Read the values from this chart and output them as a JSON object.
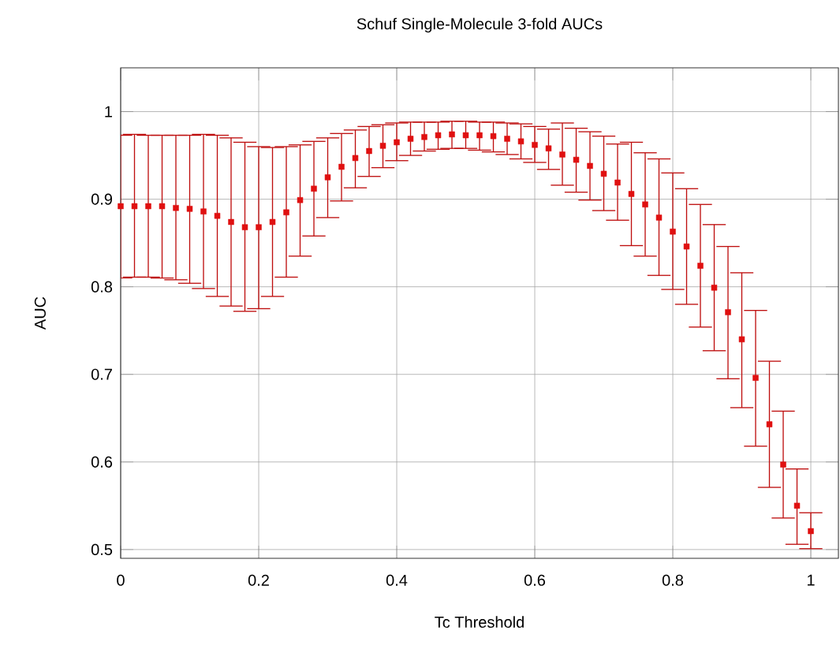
{
  "chart_data": {
    "type": "scatter",
    "title": "Schuf Single-Molecule 3-fold AUCs",
    "xlabel": "Tc Threshold",
    "ylabel": "AUC",
    "x": [
      0,
      0.02,
      0.04,
      0.06,
      0.08,
      0.1,
      0.12,
      0.14,
      0.16,
      0.18,
      0.2,
      0.22,
      0.24,
      0.26,
      0.28,
      0.3,
      0.32,
      0.34,
      0.36,
      0.38,
      0.4,
      0.42,
      0.44,
      0.46,
      0.48,
      0.5,
      0.52,
      0.54,
      0.56,
      0.58,
      0.6,
      0.62,
      0.64,
      0.66,
      0.68,
      0.7,
      0.72,
      0.74,
      0.76,
      0.78,
      0.8,
      0.82,
      0.84,
      0.86,
      0.88,
      0.9,
      0.92,
      0.94,
      0.96,
      0.98,
      1
    ],
    "values": [
      0.892,
      0.892,
      0.892,
      0.892,
      0.89,
      0.889,
      0.886,
      0.881,
      0.874,
      0.868,
      0.868,
      0.874,
      0.885,
      0.899,
      0.912,
      0.925,
      0.937,
      0.947,
      0.955,
      0.961,
      0.965,
      0.969,
      0.971,
      0.973,
      0.974,
      0.973,
      0.973,
      0.972,
      0.969,
      0.966,
      0.962,
      0.958,
      0.951,
      0.945,
      0.938,
      0.929,
      0.919,
      0.906,
      0.894,
      0.879,
      0.863,
      0.846,
      0.824,
      0.799,
      0.771,
      0.74,
      0.696,
      0.643,
      0.597,
      0.55,
      0.521
    ],
    "errors": [
      [
        0.81,
        0.973
      ],
      [
        0.811,
        0.974
      ],
      [
        0.811,
        0.973
      ],
      [
        0.81,
        0.973
      ],
      [
        0.808,
        0.973
      ],
      [
        0.804,
        0.973
      ],
      [
        0.798,
        0.974
      ],
      [
        0.789,
        0.973
      ],
      [
        0.778,
        0.97
      ],
      [
        0.772,
        0.965
      ],
      [
        0.775,
        0.96
      ],
      [
        0.789,
        0.959
      ],
      [
        0.811,
        0.96
      ],
      [
        0.835,
        0.962
      ],
      [
        0.858,
        0.966
      ],
      [
        0.879,
        0.97
      ],
      [
        0.898,
        0.975
      ],
      [
        0.913,
        0.979
      ],
      [
        0.926,
        0.983
      ],
      [
        0.936,
        0.985
      ],
      [
        0.944,
        0.987
      ],
      [
        0.95,
        0.988
      ],
      [
        0.955,
        0.988
      ],
      [
        0.957,
        0.988
      ],
      [
        0.958,
        0.989
      ],
      [
        0.958,
        0.989
      ],
      [
        0.956,
        0.988
      ],
      [
        0.954,
        0.988
      ],
      [
        0.951,
        0.987
      ],
      [
        0.946,
        0.986
      ],
      [
        0.942,
        0.983
      ],
      [
        0.934,
        0.98
      ],
      [
        0.916,
        0.987
      ],
      [
        0.908,
        0.981
      ],
      [
        0.899,
        0.977
      ],
      [
        0.887,
        0.972
      ],
      [
        0.876,
        0.963
      ],
      [
        0.847,
        0.965
      ],
      [
        0.835,
        0.953
      ],
      [
        0.813,
        0.946
      ],
      [
        0.797,
        0.93
      ],
      [
        0.78,
        0.912
      ],
      [
        0.754,
        0.894
      ],
      [
        0.727,
        0.871
      ],
      [
        0.695,
        0.846
      ],
      [
        0.662,
        0.816
      ],
      [
        0.618,
        0.773
      ],
      [
        0.571,
        0.715
      ],
      [
        0.536,
        0.658
      ],
      [
        0.506,
        0.592
      ],
      [
        0.501,
        0.542
      ]
    ],
    "color": "#e01010",
    "marker": "square",
    "grid": true,
    "xlim": [
      0,
      1.04
    ],
    "ylim": [
      0.49,
      1.05
    ],
    "xticks": [
      0,
      0.2,
      0.4,
      0.6,
      0.8,
      1
    ],
    "yticks": [
      0.5,
      0.6,
      0.7,
      0.8,
      0.9,
      1
    ]
  }
}
